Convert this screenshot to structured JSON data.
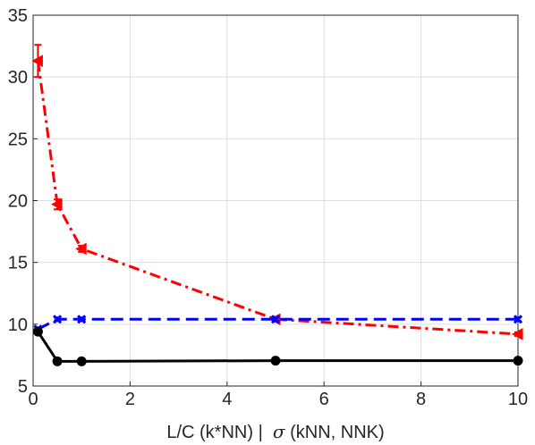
{
  "chart_data": {
    "type": "line",
    "title": "",
    "xlabel_parts": {
      "before": "L/C (k*NN) |  ",
      "symbol": "σ",
      "after": " (kNN, NNK)"
    },
    "ylabel": "",
    "xlim": [
      0,
      10
    ],
    "ylim": [
      5,
      35
    ],
    "xticks": [
      0,
      2,
      4,
      6,
      8,
      10
    ],
    "yticks": [
      5,
      10,
      15,
      20,
      25,
      30,
      35
    ],
    "grid": true,
    "legend": "none",
    "series": [
      {
        "color": "#ff0000",
        "line_style": "dash-dot",
        "marker": "left-triangle",
        "x": [
          0.1,
          0.5,
          1,
          5,
          10
        ],
        "y": [
          31.3,
          19.7,
          16.1,
          10.4,
          9.2
        ],
        "error": [
          1.3,
          0.4,
          0.25,
          0.2,
          0.15
        ]
      },
      {
        "color": "#0000ff",
        "line_style": "dashed",
        "marker": "x",
        "x": [
          0.1,
          0.5,
          1,
          5,
          10
        ],
        "y": [
          9.6,
          10.4,
          10.4,
          10.4,
          10.4
        ],
        "error": [
          0.15,
          0.15,
          0.15,
          0.15,
          0.15
        ]
      },
      {
        "color": "#000000",
        "line_style": "solid",
        "marker": "circle",
        "x": [
          0.1,
          0.5,
          1,
          5,
          10
        ],
        "y": [
          9.4,
          7.0,
          7.0,
          7.05,
          7.05
        ],
        "error": [
          0.2,
          0.2,
          0.2,
          0.2,
          0.2
        ]
      }
    ]
  }
}
